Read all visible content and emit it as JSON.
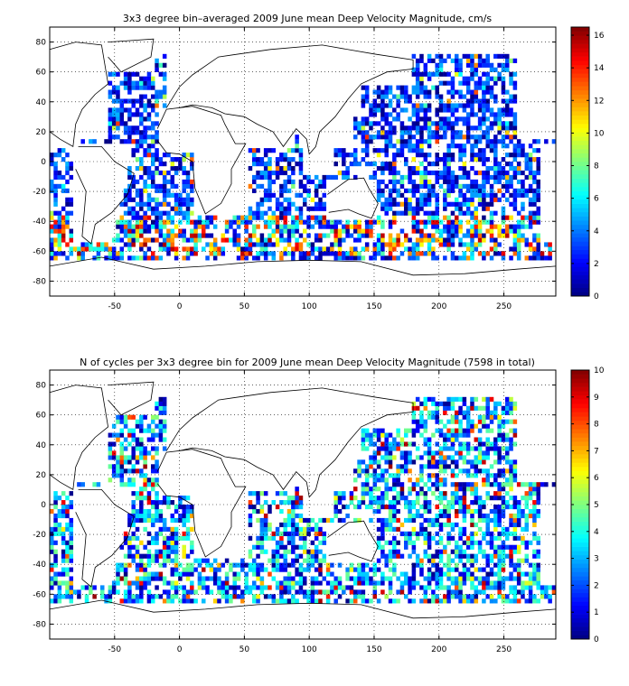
{
  "chart_data": [
    {
      "type": "heatmap",
      "title": "3x3 degree bin–averaged 2009 June mean Deep Velocity Magnitude, cm/s",
      "xlim": [
        -100,
        290
      ],
      "ylim": [
        -90,
        90
      ],
      "xticks": [
        -50,
        0,
        50,
        100,
        150,
        200,
        250
      ],
      "yticks": [
        80,
        60,
        40,
        20,
        0,
        -20,
        -40,
        -60,
        -80
      ],
      "colorbar": {
        "min": 0,
        "max": 16.5,
        "ticks": [
          0,
          2,
          4,
          6,
          8,
          10,
          12,
          14,
          16
        ]
      },
      "grid": true,
      "bin_size_deg": 3,
      "colormap": "jet",
      "seed": 11
    },
    {
      "type": "heatmap",
      "title": "N of cycles per 3x3 degree bin for 2009 June mean Deep Velocity Magnitude (7598 in total)",
      "xlim": [
        -100,
        290
      ],
      "ylim": [
        -90,
        90
      ],
      "xticks": [
        -50,
        0,
        50,
        100,
        150,
        200,
        250
      ],
      "yticks": [
        80,
        60,
        40,
        20,
        0,
        -20,
        -40,
        -60,
        -80
      ],
      "colorbar": {
        "min": 0,
        "max": 10,
        "ticks": [
          0,
          1,
          2,
          3,
          4,
          5,
          6,
          7,
          8,
          9,
          10
        ]
      },
      "grid": true,
      "bin_size_deg": 3,
      "colormap": "jet",
      "seed": 29
    }
  ]
}
